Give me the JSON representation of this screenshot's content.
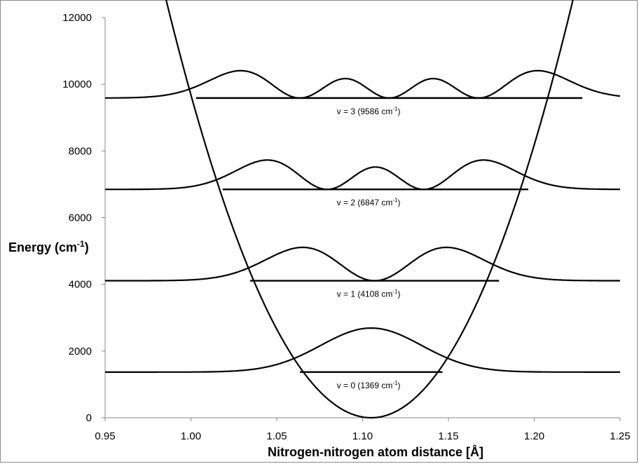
{
  "chart_data": {
    "type": "line",
    "title": "",
    "xlabel": "Nitrogen-nitrogen atom distance [Å]",
    "ylabel": "Energy (cm",
    "ylabel_unit_sup": "-1",
    "ylabel_close": ")",
    "xlim": [
      0.95,
      1.25
    ],
    "ylim": [
      0,
      12000
    ],
    "x_ticks": [
      "0.95",
      "1.00",
      "1.05",
      "1.10",
      "1.15",
      "1.20",
      "1.25"
    ],
    "y_ticks": [
      "0",
      "2000",
      "4000",
      "6000",
      "8000",
      "10000",
      "12000"
    ],
    "grid": false,
    "potential": {
      "name": "harmonic potential",
      "center": 1.105,
      "points_x": [
        1.0,
        1.05,
        1.105,
        1.16,
        1.21
      ],
      "points_y": [
        9680,
        2400,
        0,
        2400,
        10000
      ]
    },
    "levels": [
      {
        "v": 0,
        "energy": 1369,
        "label_pre": "v = 0 (1369 cm",
        "label_sup": "-1",
        "label_post": ")",
        "turning_points": [
          1.0635,
          1.1465
        ],
        "wave_amplitude": 1320
      },
      {
        "v": 1,
        "energy": 4108,
        "label_pre": "v = 1 (4108 cm",
        "label_sup": "-1",
        "label_post": ")",
        "turning_points": [
          1.0345,
          1.1795
        ],
        "wave_amplitude": 1000,
        "peaks": [
          1.0625,
          1.1475
        ]
      },
      {
        "v": 2,
        "energy": 6847,
        "label_pre": "v = 2 (6847 cm",
        "label_sup": "-1",
        "label_post": ")",
        "turning_points": [
          1.0185,
          1.1965
        ],
        "wave_amplitude": 880,
        "peaks": [
          1.039,
          1.105,
          1.171
        ]
      },
      {
        "v": 3,
        "energy": 9586,
        "label_pre": "v = 3 (9586 cm",
        "label_sup": "-1",
        "label_post": ")",
        "turning_points": [
          1.003,
          1.228
        ],
        "wave_amplitude": 820,
        "peaks": [
          1.02,
          1.0775,
          1.1325,
          1.19
        ]
      }
    ]
  }
}
